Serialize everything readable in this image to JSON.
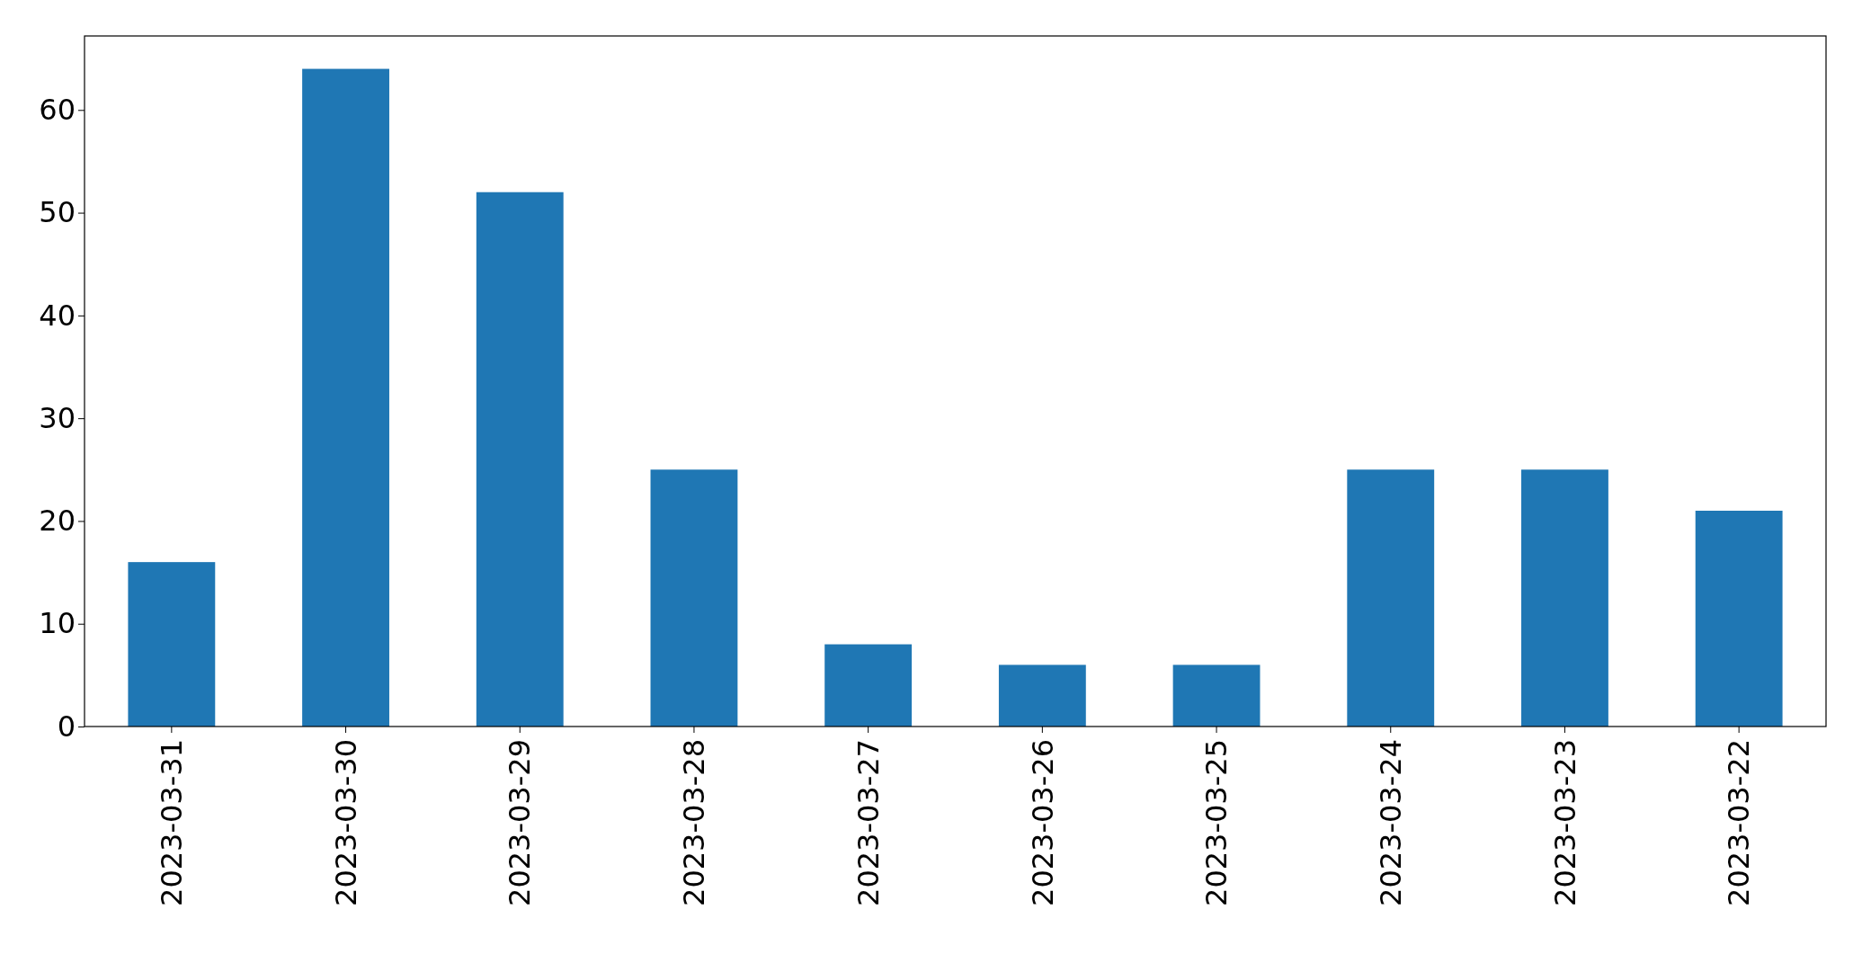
{
  "chart_data": {
    "type": "bar",
    "categories": [
      "2023-03-31",
      "2023-03-30",
      "2023-03-29",
      "2023-03-28",
      "2023-03-27",
      "2023-03-26",
      "2023-03-25",
      "2023-03-24",
      "2023-03-23",
      "2023-03-22"
    ],
    "values": [
      16,
      64,
      52,
      25,
      8,
      6,
      6,
      25,
      25,
      21
    ],
    "color": "#1f77b4",
    "ylim": [
      0,
      67.2
    ],
    "yticks": [
      0,
      10,
      20,
      30,
      40,
      50,
      60
    ],
    "grid": false
  }
}
